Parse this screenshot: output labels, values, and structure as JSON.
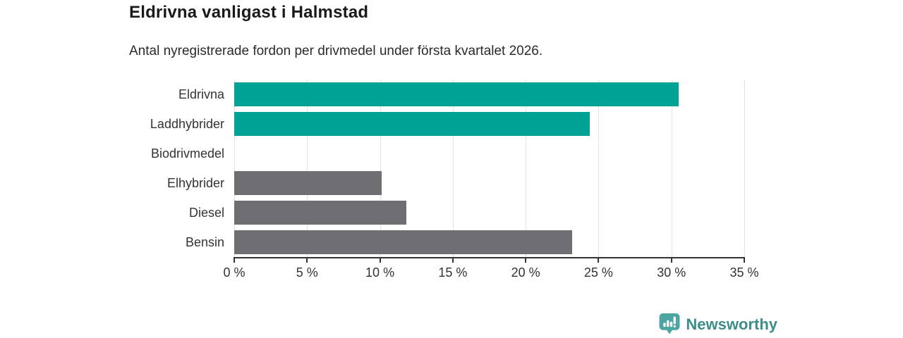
{
  "header": {
    "title": "Eldrivna vanligast i Halmstad",
    "subtitle": "Antal nyregistrerade fordon per drivmedel under första kvartalet 2026."
  },
  "chart_data": {
    "type": "bar",
    "orientation": "horizontal",
    "title": "Eldrivna vanligast i Halmstad",
    "subtitle": "Antal nyregistrerade fordon per drivmedel under första kvartalet 2026.",
    "categories": [
      "Eldrivna",
      "Laddhybrider",
      "Biodrivmedel",
      "Elhybrider",
      "Diesel",
      "Bensin"
    ],
    "values": [
      30.5,
      24.4,
      0,
      10.1,
      11.8,
      23.2
    ],
    "unit": "%",
    "bar_colors": [
      "#00a296",
      "#00a296",
      "#00a296",
      "#6e6e73",
      "#6e6e73",
      "#6e6e73"
    ],
    "xlim": [
      0,
      35
    ],
    "x_ticks": [
      0,
      5,
      10,
      15,
      20,
      25,
      30,
      35
    ],
    "x_tick_labels": [
      "0 %",
      "5 %",
      "10 %",
      "15 %",
      "20 %",
      "25 %",
      "30 %",
      "35 %"
    ],
    "xlabel": "",
    "ylabel": "",
    "grid": true,
    "legend": "none"
  },
  "footer": {
    "brand": "Newsworthy"
  },
  "colors": {
    "highlight_bar": "#00a296",
    "muted_bar": "#6e6e73",
    "gridline": "#e2e2e2",
    "axis": "#333333",
    "brand_teal": "#3c8d8a",
    "logo_icon_teal": "#4ba6a1"
  }
}
